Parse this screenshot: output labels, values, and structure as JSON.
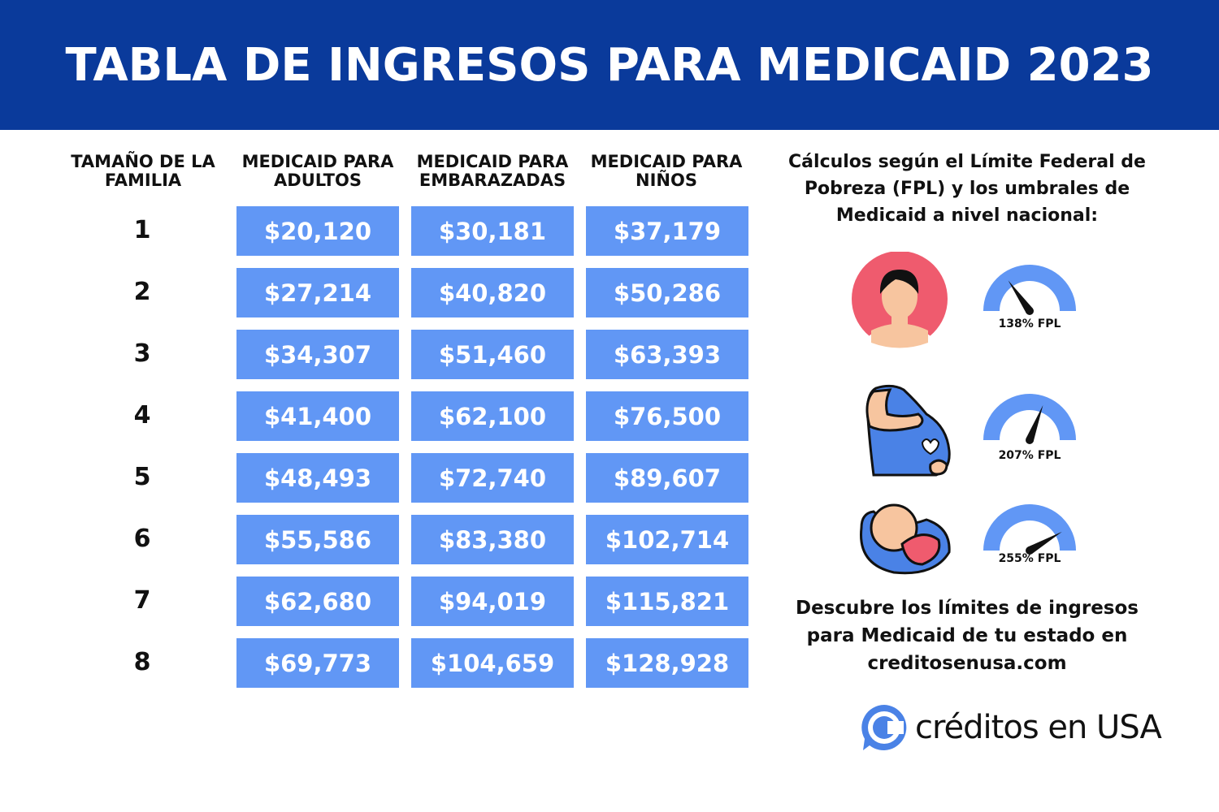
{
  "title": "TABLA DE INGRESOS PARA MEDICAID 2023",
  "table": {
    "headers": [
      "TAMAÑO DE LA FAMILIA",
      "MEDICAID PARA ADULTOS",
      "MEDICAID PARA EMBARAZADAS",
      "MEDICAID PARA NIÑOS"
    ],
    "rows": [
      {
        "size": "1",
        "adults": "$20,120",
        "pregnant": "$30,181",
        "children": "$37,179"
      },
      {
        "size": "2",
        "adults": "$27,214",
        "pregnant": "$40,820",
        "children": "$50,286"
      },
      {
        "size": "3",
        "adults": "$34,307",
        "pregnant": "$51,460",
        "children": "$63,393"
      },
      {
        "size": "4",
        "adults": "$41,400",
        "pregnant": "$62,100",
        "children": "$76,500"
      },
      {
        "size": "5",
        "adults": "$48,493",
        "pregnant": "$72,740",
        "children": "$89,607"
      },
      {
        "size": "6",
        "adults": "$55,586",
        "pregnant": "$83,380",
        "children": "$102,714"
      },
      {
        "size": "7",
        "adults": "$62,680",
        "pregnant": "$94,019",
        "children": "$115,821"
      },
      {
        "size": "8",
        "adults": "$69,773",
        "pregnant": "$104,659",
        "children": "$128,928"
      }
    ]
  },
  "side": {
    "intro": "Cálculos según el Límite Federal de Pobreza (FPL) y los umbrales de Medicaid a nivel nacional:",
    "gauges": [
      {
        "icon": "adult-woman-icon",
        "value": 138,
        "label": "138% FPL"
      },
      {
        "icon": "pregnant-woman-icon",
        "value": 207,
        "label": "207% FPL"
      },
      {
        "icon": "baby-icon",
        "value": 255,
        "label": "255% FPL"
      }
    ],
    "cta": "Descubre los límites de ingresos para Medicaid de tu estado en creditosenusa.com"
  },
  "logo": {
    "text": "créditos en USA"
  },
  "colors": {
    "header": "#0a3a9b",
    "cell": "#6197f5",
    "gauge": "#6197f5",
    "avatar_bg": "#ef5b6e"
  }
}
